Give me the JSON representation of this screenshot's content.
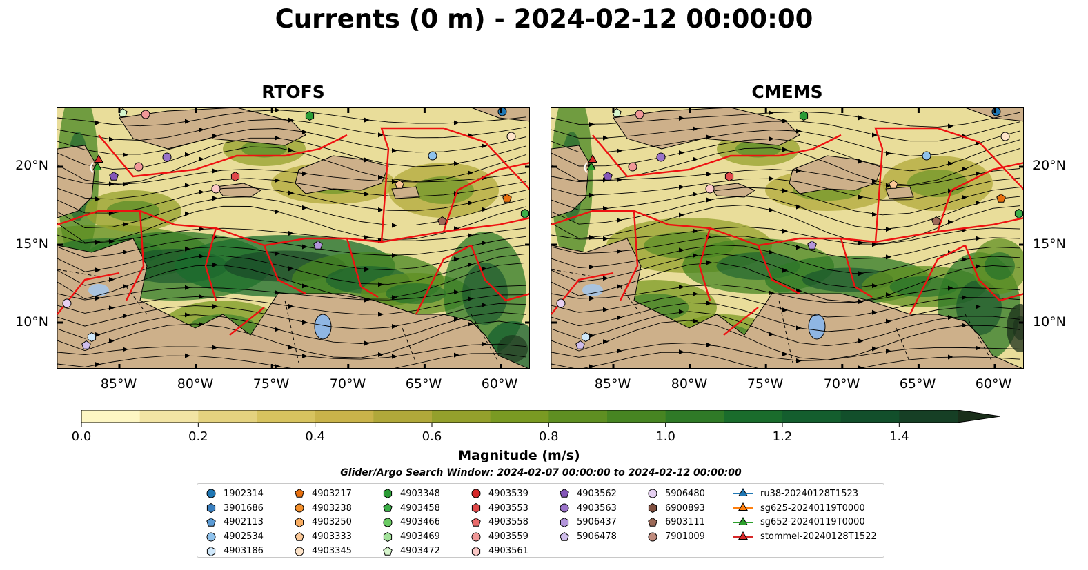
{
  "title": "Currents (0 m) - 2024-02-12 00:00:00",
  "panels": [
    {
      "title": "RTOFS"
    },
    {
      "title": "CMEMS"
    }
  ],
  "axes": {
    "lon_labels": [
      "85°W",
      "80°W",
      "75°W",
      "70°W",
      "65°W",
      "60°W"
    ],
    "lat_labels": [
      "20°N",
      "15°N",
      "10°N"
    ]
  },
  "colorbar": {
    "label": "Magnitude (m/s)",
    "ticks": [
      "0.0",
      "0.2",
      "0.4",
      "0.6",
      "0.8",
      "1.0",
      "1.2",
      "1.4"
    ],
    "range": [
      0.0,
      1.5
    ],
    "extend": "max",
    "colors": [
      "#fdf6c3",
      "#f2e4a4",
      "#e4d27f",
      "#d7c35f",
      "#c9b34a",
      "#b0a83a",
      "#94a02c",
      "#7a9a23",
      "#5f8f22",
      "#478522",
      "#2f7a27",
      "#1a6c2c",
      "#145e2e",
      "#124f2b",
      "#163f25",
      "#1a2e1a"
    ]
  },
  "search_window": "Glider/Argo Search Window: 2024-02-07 00:00:00 to 2024-02-12 00:00:00",
  "legend": {
    "columns": [
      [
        {
          "label": "1902314",
          "marker": "circle",
          "color": "#1f77b4"
        },
        {
          "label": "3901686",
          "marker": "hexagon",
          "color": "#3a7fbf"
        },
        {
          "label": "4902113",
          "marker": "pentagon",
          "color": "#5b9bd5"
        },
        {
          "label": "4902534",
          "marker": "circle",
          "color": "#8fc2ec"
        },
        {
          "label": "4903186",
          "marker": "hexagon",
          "color": "#cfe8fb"
        }
      ],
      [
        {
          "label": "4903217",
          "marker": "pentagon",
          "color": "#e8700f"
        },
        {
          "label": "4903238",
          "marker": "circle",
          "color": "#f4902c"
        },
        {
          "label": "4903250",
          "marker": "hexagon",
          "color": "#f9ad62"
        },
        {
          "label": "4903333",
          "marker": "pentagon",
          "color": "#fbc897"
        },
        {
          "label": "4903345",
          "marker": "circle",
          "color": "#fde3c8"
        }
      ],
      [
        {
          "label": "4903348",
          "marker": "hexagon",
          "color": "#2a9b35"
        },
        {
          "label": "4903458",
          "marker": "pentagon",
          "color": "#3caf48"
        },
        {
          "label": "4903466",
          "marker": "circle",
          "color": "#6acb63"
        },
        {
          "label": "4903469",
          "marker": "hexagon",
          "color": "#a3e29a"
        },
        {
          "label": "4903472",
          "marker": "pentagon",
          "color": "#d6f5cc"
        }
      ],
      [
        {
          "label": "4903539",
          "marker": "circle",
          "color": "#d62728"
        },
        {
          "label": "4903553",
          "marker": "hexagon",
          "color": "#e0494a"
        },
        {
          "label": "4903558",
          "marker": "pentagon",
          "color": "#e86a6b"
        },
        {
          "label": "4903559",
          "marker": "circle",
          "color": "#f09898"
        },
        {
          "label": "4903561",
          "marker": "hexagon",
          "color": "#fac8c6"
        }
      ],
      [
        {
          "label": "4903562",
          "marker": "pentagon",
          "color": "#8456b8"
        },
        {
          "label": "4903563",
          "marker": "circle",
          "color": "#9a73c9"
        },
        {
          "label": "5906437",
          "marker": "hexagon",
          "color": "#b295db"
        },
        {
          "label": "5906478",
          "marker": "pentagon",
          "color": "#cfbdeb"
        }
      ],
      [
        {
          "label": "5906480",
          "marker": "circle",
          "color": "#e6d0f2"
        },
        {
          "label": "6900893",
          "marker": "hexagon",
          "color": "#7f4f3f"
        },
        {
          "label": "6903111",
          "marker": "pentagon",
          "color": "#9c6957"
        },
        {
          "label": "7901009",
          "marker": "circle",
          "color": "#bf8b7d"
        }
      ],
      [
        {
          "label": "ru38-20240128T1523",
          "marker": "triangle-line",
          "color": "#1f77b4"
        },
        {
          "label": "sg625-20240119T0000",
          "marker": "triangle-line",
          "color": "#ff7f0e"
        },
        {
          "label": "sg652-20240119T0000",
          "marker": "triangle-line",
          "color": "#2ca02c"
        },
        {
          "label": "stommel-20240128T1522",
          "marker": "triangle-line",
          "color": "#d62728"
        }
      ]
    ]
  }
}
